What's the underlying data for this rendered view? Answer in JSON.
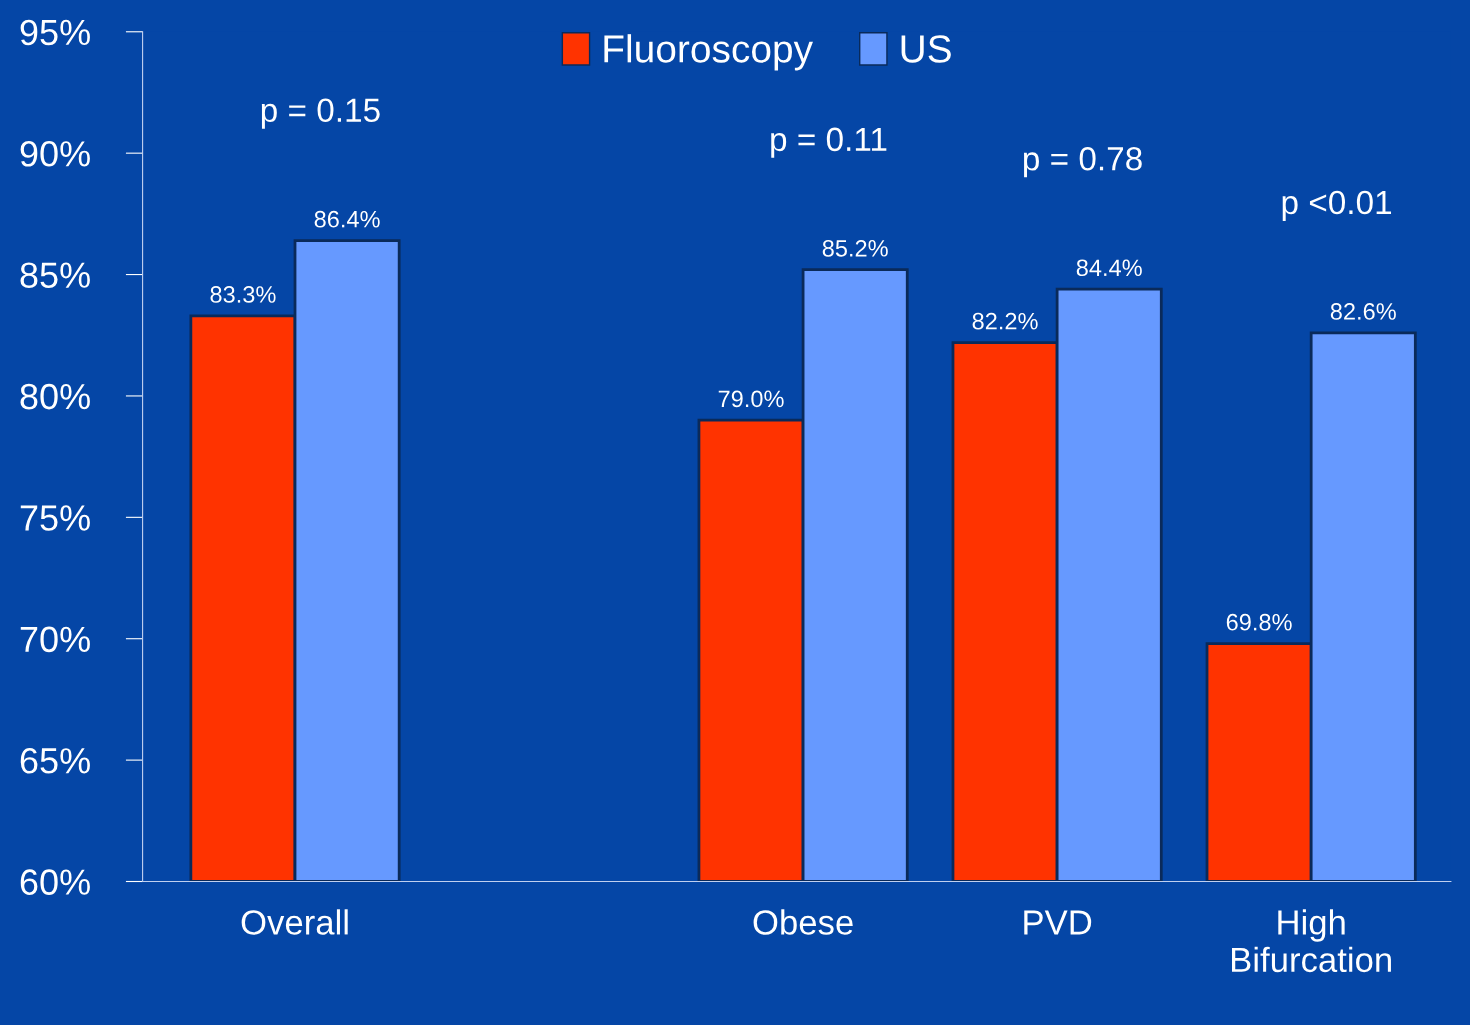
{
  "chart_data": {
    "type": "bar",
    "categories": [
      "Overall",
      null,
      "Obese",
      "PVD",
      "High\nBifurcation"
    ],
    "series": [
      {
        "name": "Fluoroscopy",
        "color": "#ff3300",
        "values": [
          83.3,
          null,
          79.0,
          82.2,
          69.8
        ],
        "value_labels": [
          "83.3%",
          null,
          "79.0%",
          "82.2%",
          "69.8%"
        ]
      },
      {
        "name": "US",
        "color": "#6699ff",
        "values": [
          86.4,
          null,
          85.2,
          84.4,
          82.6
        ],
        "value_labels": [
          "86.4%",
          null,
          "85.2%",
          "84.4%",
          "82.6%"
        ]
      }
    ],
    "ylim": [
      60,
      95
    ],
    "yticks": [
      {
        "value": 60,
        "label": "60%"
      },
      {
        "value": 65,
        "label": "65%"
      },
      {
        "value": 70,
        "label": "70%"
      },
      {
        "value": 75,
        "label": "75%"
      },
      {
        "value": 80,
        "label": "80%"
      },
      {
        "value": 85,
        "label": "85%"
      },
      {
        "value": 90,
        "label": "90%"
      },
      {
        "value": 95,
        "label": "95%"
      }
    ],
    "annotations": [
      "p = 0.15",
      "p = 0.11",
      "p = 0.78",
      "p <0.01"
    ],
    "legend": "top",
    "grid": false
  }
}
